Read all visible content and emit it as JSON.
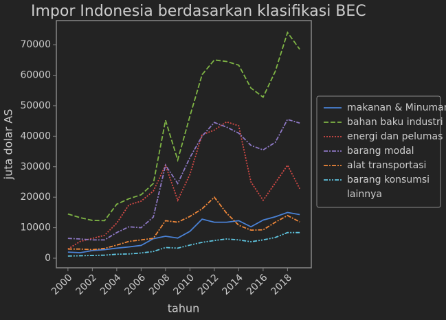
{
  "chart_data": {
    "type": "line",
    "title": "Impor Indonesia berdasarkan klasifikasi BEC",
    "x_label": "tahun",
    "y_label": "juta dolar AS",
    "x": [
      2000,
      2001,
      2002,
      2003,
      2004,
      2005,
      2006,
      2007,
      2008,
      2009,
      2010,
      2011,
      2012,
      2013,
      2014,
      2015,
      2016,
      2017,
      2018,
      2019
    ],
    "xlim": [
      1999.05,
      2019.95
    ],
    "xticks": [
      2000,
      2002,
      2004,
      2006,
      2008,
      2010,
      2012,
      2014,
      2016,
      2018
    ],
    "ylim": [
      -3150,
      77900
    ],
    "yticks": [
      0,
      10000,
      20000,
      30000,
      40000,
      50000,
      60000,
      70000
    ],
    "grid": false,
    "legend": "right",
    "series": [
      {
        "name": "makanan & Minuman",
        "color": "#4a82d6",
        "dash": "solid",
        "values": [
          2000,
          1800,
          2500,
          2800,
          3300,
          3700,
          4200,
          6400,
          7200,
          6600,
          8800,
          12800,
          11800,
          11800,
          12300,
          10300,
          12500,
          13600,
          15000,
          14300
        ]
      },
      {
        "name": "bahan baku industri",
        "color": "#7fb545",
        "dash": "dashed",
        "values": [
          14500,
          13300,
          12400,
          12300,
          17700,
          19500,
          20800,
          24500,
          45200,
          32200,
          46600,
          60200,
          65000,
          64500,
          63300,
          55800,
          52800,
          61300,
          74000,
          68500
        ]
      },
      {
        "name": "energi dan pelumas",
        "color": "#d64a46",
        "dash": "dotted",
        "values": [
          3000,
          5500,
          6500,
          7500,
          11500,
          17500,
          18700,
          22000,
          30500,
          19000,
          27500,
          40500,
          42000,
          44700,
          43400,
          25000,
          19000,
          24700,
          30500,
          22800
        ]
      },
      {
        "name": "barang modal",
        "color": "#8d78c4",
        "dash": "dashdot",
        "values": [
          6500,
          6300,
          6000,
          6000,
          8400,
          10300,
          10000,
          13500,
          30500,
          24500,
          33000,
          40000,
          44500,
          43000,
          41000,
          37000,
          35500,
          38000,
          45500,
          44300
        ]
      },
      {
        "name": "alat transportasi",
        "color": "#f0883a",
        "dash": "dashdot",
        "values": [
          3000,
          3000,
          2800,
          3200,
          4300,
          5500,
          6000,
          6500,
          12300,
          11800,
          13700,
          16200,
          20000,
          14800,
          10800,
          9200,
          9300,
          11800,
          14000,
          11900
        ]
      },
      {
        "name": "barang konsumsi",
        "color": "#5fc5e0",
        "dash": "dashdotdot",
        "values": [
          700,
          800,
          900,
          1000,
          1300,
          1400,
          1700,
          2200,
          3500,
          3300,
          4300,
          5200,
          5800,
          6300,
          6000,
          5400,
          6000,
          6800,
          8400,
          8400
        ]
      },
      {
        "name": "lainnya",
        "values": [
          null,
          null,
          null,
          null,
          null,
          null,
          null,
          null,
          null,
          null,
          null,
          null,
          null,
          null,
          null,
          null,
          null,
          null,
          null,
          null
        ]
      }
    ]
  }
}
